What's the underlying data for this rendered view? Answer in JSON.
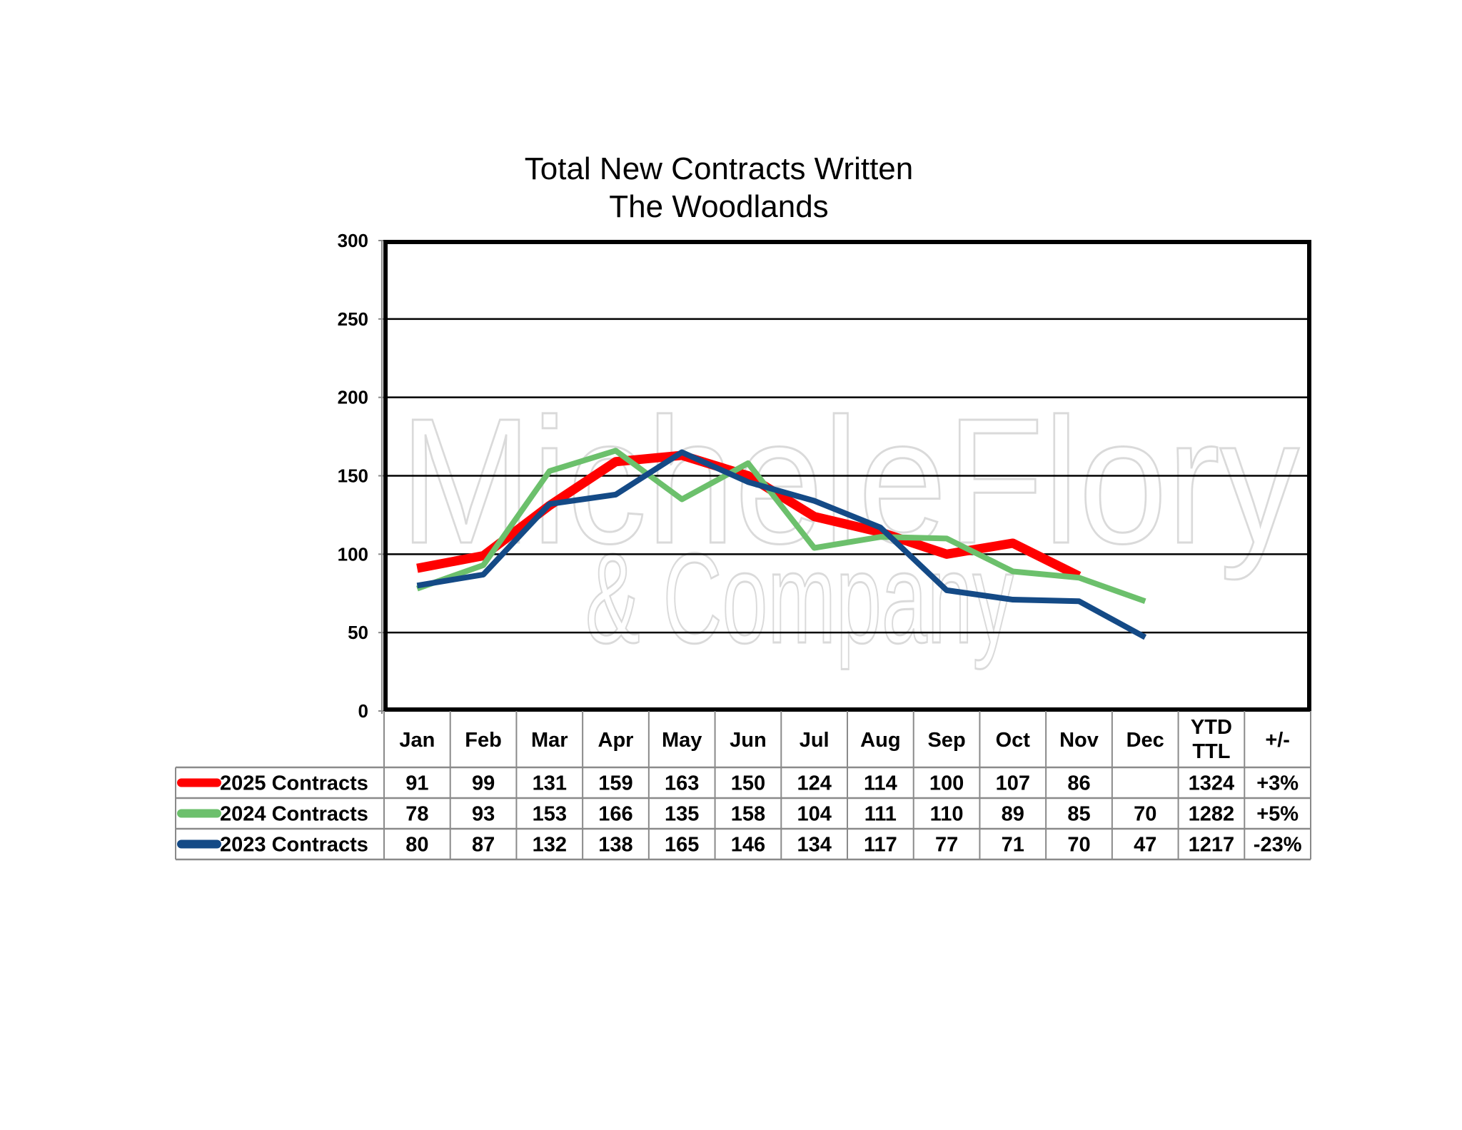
{
  "chart_data": {
    "type": "line",
    "title": [
      "Total New Contracts Written",
      "The Woodlands"
    ],
    "xlabel": "",
    "ylabel": "",
    "ylim": [
      0,
      300
    ],
    "yticks": [
      0,
      50,
      100,
      150,
      200,
      250,
      300
    ],
    "grid": true,
    "categories": [
      "Jan",
      "Feb",
      "Mar",
      "Apr",
      "May",
      "Jun",
      "Jul",
      "Aug",
      "Sep",
      "Oct",
      "Nov",
      "Dec"
    ],
    "extra_columns": [
      "YTD TTL",
      "+/-"
    ],
    "legend_placement": "data-table-left",
    "series": [
      {
        "name": "2025 Contracts",
        "color": "#ff0000",
        "values": [
          91,
          99,
          131,
          159,
          163,
          150,
          124,
          114,
          100,
          107,
          86,
          null
        ],
        "ytd": "1324",
        "change": "+3%"
      },
      {
        "name": "2024 Contracts",
        "color": "#6cc06c",
        "values": [
          78,
          93,
          153,
          166,
          135,
          158,
          104,
          111,
          110,
          89,
          85,
          70
        ],
        "ytd": "1282",
        "change": "+5%"
      },
      {
        "name": "2023 Contracts",
        "color": "#144a86",
        "values": [
          80,
          87,
          132,
          138,
          165,
          146,
          134,
          117,
          77,
          71,
          70,
          47
        ],
        "ytd": "1217",
        "change": "-23%"
      }
    ]
  },
  "watermark": {
    "line1": "MicheleFlory",
    "line2": "& Company"
  }
}
